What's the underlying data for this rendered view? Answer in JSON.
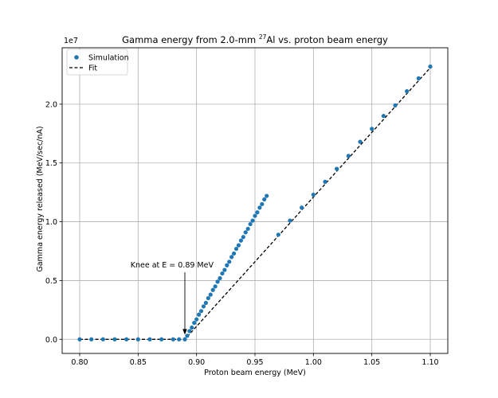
{
  "chart_data": {
    "type": "scatter",
    "title_main": "Gamma energy from 2.0-mm ",
    "title_sup": "27",
    "title_rest": "Al vs. proton beam energy",
    "xlabel": "Proton beam energy (MeV)",
    "ylabel": "Gamma energy released (MeV/sec/nA)",
    "y_offset_label": "1e7",
    "xlim": [
      0.785,
      1.115
    ],
    "ylim": [
      -0.12,
      2.48
    ],
    "x_ticks": [
      0.8,
      0.85,
      0.9,
      0.95,
      1.0,
      1.05,
      1.1
    ],
    "x_tick_labels": [
      "0.80",
      "0.85",
      "0.90",
      "0.95",
      "1.00",
      "1.05",
      "1.10"
    ],
    "y_ticks": [
      0.0,
      0.5,
      1.0,
      1.5,
      2.0
    ],
    "y_tick_labels": [
      "0.0",
      "0.5",
      "1.0",
      "1.5",
      "2.0"
    ],
    "grid": true,
    "legend_position": "top-left",
    "legend": [
      {
        "label": "Simulation",
        "marker": "dot"
      },
      {
        "label": "Fit",
        "marker": "dashed-line"
      }
    ],
    "colors": {
      "simulation": "#1f77b4",
      "fit": "#000000",
      "grid": "#b0b0b0"
    },
    "series": [
      {
        "name": "Simulation",
        "style": "scatter",
        "x": [
          0.8,
          0.81,
          0.82,
          0.83,
          0.84,
          0.85,
          0.86,
          0.87,
          0.88,
          0.885,
          0.89,
          0.892,
          0.894,
          0.896,
          0.898,
          0.9,
          0.902,
          0.904,
          0.906,
          0.908,
          0.91,
          0.912,
          0.914,
          0.916,
          0.918,
          0.92,
          0.922,
          0.924,
          0.926,
          0.928,
          0.93,
          0.932,
          0.934,
          0.936,
          0.938,
          0.94,
          0.942,
          0.944,
          0.946,
          0.948,
          0.95,
          0.952,
          0.954,
          0.956,
          0.958,
          0.96,
          0.97,
          0.98,
          0.99,
          1.0,
          1.01,
          1.02,
          1.03,
          1.04,
          1.05,
          1.06,
          1.07,
          1.08,
          1.09,
          1.1
        ],
        "y": [
          0.0,
          0.0,
          0.0,
          0.0,
          0.0,
          0.0,
          0.0,
          0.0,
          0.0,
          0.0,
          0.0,
          0.03,
          0.07,
          0.1,
          0.14,
          0.17,
          0.21,
          0.24,
          0.28,
          0.31,
          0.35,
          0.38,
          0.42,
          0.45,
          0.49,
          0.52,
          0.56,
          0.59,
          0.63,
          0.66,
          0.7,
          0.73,
          0.77,
          0.8,
          0.84,
          0.87,
          0.91,
          0.94,
          0.98,
          1.01,
          1.05,
          1.08,
          1.12,
          1.15,
          1.19,
          1.22,
          0.89,
          1.01,
          1.12,
          1.23,
          1.34,
          1.45,
          1.56,
          1.68,
          1.79,
          1.9,
          1.99,
          2.11,
          2.22,
          2.32
        ]
      },
      {
        "name": "Fit",
        "style": "dashed",
        "x": [
          0.8,
          0.89,
          1.1
        ],
        "y": [
          0.0,
          0.0,
          2.31
        ]
      }
    ],
    "annotation": {
      "text": "Knee at E = 0.89 MeV",
      "arrow_to": {
        "x": 0.89,
        "y": 0.04
      },
      "text_at": {
        "x": 0.879,
        "y": 0.61
      }
    }
  }
}
